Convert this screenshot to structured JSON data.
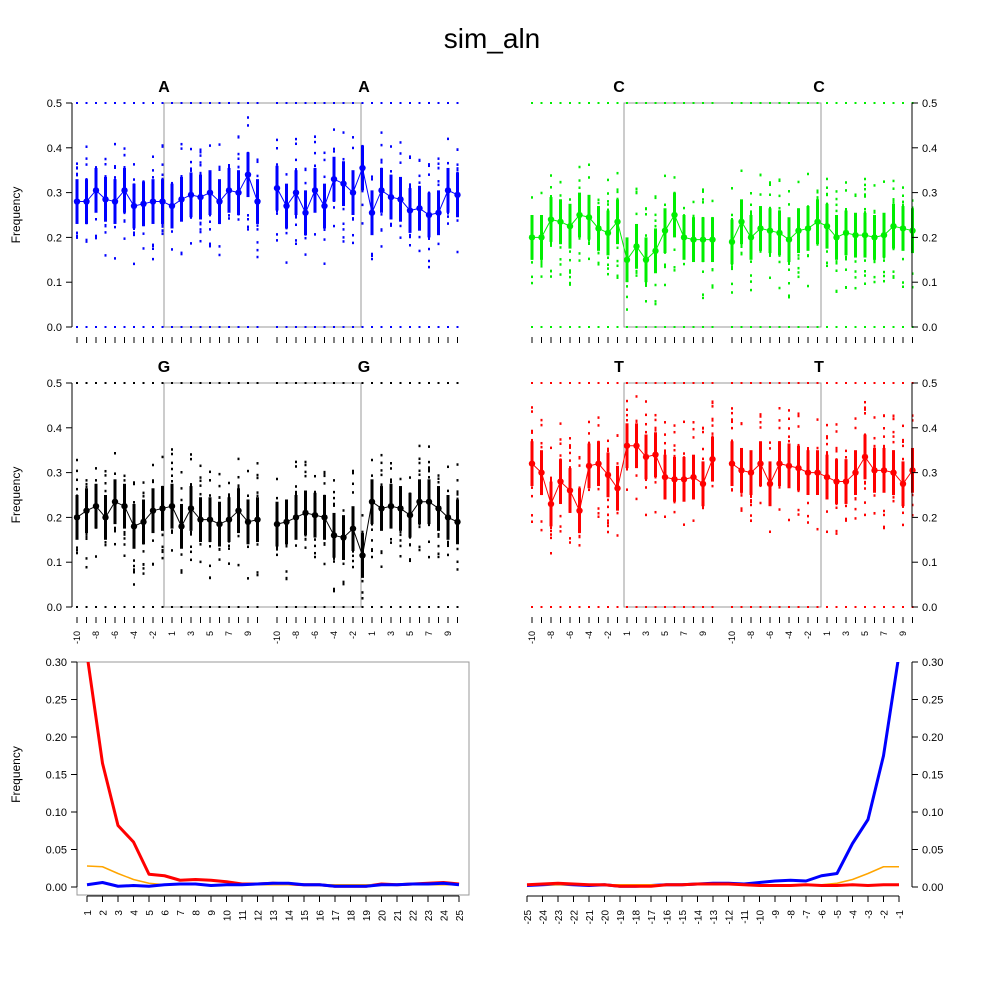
{
  "title": "sim_aln",
  "colors": {
    "A": "#0000ff",
    "C": "#00ee00",
    "G": "#000000",
    "T": "#ff0000",
    "box": "#999999",
    "orange": "#ffa500"
  },
  "labels": {
    "ylabel": "Frequency",
    "A": "A",
    "C": "C",
    "G": "G",
    "T": "T"
  },
  "chart_data": [
    {
      "type": "line",
      "title": "A",
      "panel": "A-left",
      "x": [
        -10,
        -9,
        -8,
        -7,
        -6,
        -5,
        -4,
        -3,
        -2,
        -1,
        1,
        2,
        3,
        4,
        5,
        6,
        7,
        8,
        9,
        10
      ],
      "mean": [
        0.28,
        0.28,
        0.305,
        0.285,
        0.28,
        0.305,
        0.27,
        0.275,
        0.28,
        0.28,
        0.27,
        0.285,
        0.295,
        0.29,
        0.3,
        0.28,
        0.305,
        0.3,
        0.34,
        0.28
      ],
      "ylim": [
        0,
        0.5
      ],
      "yticks": [
        0.0,
        0.1,
        0.2,
        0.3,
        0.4,
        0.5
      ],
      "ylabel": "Frequency"
    },
    {
      "type": "line",
      "title": "A",
      "panel": "A-right",
      "x": [
        -10,
        -9,
        -8,
        -7,
        -6,
        -5,
        -4,
        -3,
        -2,
        -1,
        1,
        2,
        3,
        4,
        5,
        6,
        7,
        8,
        9,
        10
      ],
      "mean": [
        0.31,
        0.27,
        0.3,
        0.255,
        0.305,
        0.27,
        0.33,
        0.32,
        0.3,
        0.355,
        0.255,
        0.305,
        0.29,
        0.285,
        0.26,
        0.265,
        0.25,
        0.255,
        0.305,
        0.295
      ],
      "ylim": [
        0,
        0.5
      ]
    },
    {
      "type": "line",
      "title": "C",
      "panel": "C-left",
      "x": [
        -10,
        -9,
        -8,
        -7,
        -6,
        -5,
        -4,
        -3,
        -2,
        -1,
        1,
        2,
        3,
        4,
        5,
        6,
        7,
        8,
        9,
        10
      ],
      "mean": [
        0.2,
        0.2,
        0.24,
        0.235,
        0.225,
        0.25,
        0.245,
        0.22,
        0.21,
        0.235,
        0.15,
        0.18,
        0.15,
        0.17,
        0.215,
        0.25,
        0.2,
        0.195,
        0.195,
        0.195
      ],
      "ylim": [
        0,
        0.5
      ]
    },
    {
      "type": "line",
      "title": "C",
      "panel": "C-right",
      "x": [
        -10,
        -9,
        -8,
        -7,
        -6,
        -5,
        -4,
        -3,
        -2,
        -1,
        1,
        2,
        3,
        4,
        5,
        6,
        7,
        8,
        9,
        10
      ],
      "mean": [
        0.19,
        0.235,
        0.2,
        0.22,
        0.215,
        0.21,
        0.195,
        0.215,
        0.22,
        0.235,
        0.225,
        0.2,
        0.21,
        0.205,
        0.205,
        0.2,
        0.205,
        0.225,
        0.22,
        0.215
      ],
      "ylim": [
        0,
        0.5
      ],
      "yticks": [
        0.0,
        0.1,
        0.2,
        0.3,
        0.4,
        0.5
      ]
    },
    {
      "type": "line",
      "title": "G",
      "panel": "G-left",
      "x": [
        -10,
        -9,
        -8,
        -7,
        -6,
        -5,
        -4,
        -3,
        -2,
        -1,
        1,
        2,
        3,
        4,
        5,
        6,
        7,
        8,
        9,
        10
      ],
      "mean": [
        0.2,
        0.215,
        0.225,
        0.2,
        0.235,
        0.225,
        0.18,
        0.19,
        0.215,
        0.22,
        0.225,
        0.18,
        0.22,
        0.195,
        0.195,
        0.185,
        0.195,
        0.215,
        0.19,
        0.195
      ],
      "ylim": [
        0,
        0.5
      ],
      "yticks": [
        0.0,
        0.1,
        0.2,
        0.3,
        0.4,
        0.5
      ],
      "ylabel": "Frequency"
    },
    {
      "type": "line",
      "title": "G",
      "panel": "G-right",
      "x": [
        -10,
        -9,
        -8,
        -7,
        -6,
        -5,
        -4,
        -3,
        -2,
        -1,
        1,
        2,
        3,
        4,
        5,
        6,
        7,
        8,
        9,
        10
      ],
      "mean": [
        0.185,
        0.19,
        0.2,
        0.21,
        0.205,
        0.2,
        0.16,
        0.155,
        0.175,
        0.115,
        0.235,
        0.22,
        0.225,
        0.22,
        0.205,
        0.235,
        0.235,
        0.22,
        0.2,
        0.19
      ],
      "ylim": [
        0,
        0.5
      ]
    },
    {
      "type": "line",
      "title": "T",
      "panel": "T-left",
      "x": [
        -10,
        -9,
        -8,
        -7,
        -6,
        -5,
        -4,
        -3,
        -2,
        -1,
        1,
        2,
        3,
        4,
        5,
        6,
        7,
        8,
        9,
        10
      ],
      "mean": [
        0.32,
        0.3,
        0.23,
        0.28,
        0.26,
        0.215,
        0.315,
        0.32,
        0.295,
        0.265,
        0.36,
        0.36,
        0.335,
        0.34,
        0.29,
        0.285,
        0.285,
        0.29,
        0.275,
        0.33
      ],
      "ylim": [
        0,
        0.5
      ]
    },
    {
      "type": "line",
      "title": "T",
      "panel": "T-right",
      "x": [
        -10,
        -9,
        -8,
        -7,
        -6,
        -5,
        -4,
        -3,
        -2,
        -1,
        1,
        2,
        3,
        4,
        5,
        6,
        7,
        8,
        9,
        10
      ],
      "mean": [
        0.32,
        0.305,
        0.3,
        0.32,
        0.275,
        0.32,
        0.315,
        0.31,
        0.3,
        0.3,
        0.29,
        0.28,
        0.28,
        0.3,
        0.335,
        0.305,
        0.305,
        0.3,
        0.275,
        0.305
      ],
      "ylim": [
        0,
        0.5
      ],
      "yticks": [
        0.0,
        0.1,
        0.2,
        0.3,
        0.4,
        0.5
      ]
    },
    {
      "type": "line",
      "panel": "bottom-left",
      "ylabel": "Frequency",
      "ylim": [
        0,
        0.3
      ],
      "yticks": [
        0.0,
        0.05,
        0.1,
        0.15,
        0.2,
        0.25,
        0.3
      ],
      "x": [
        1,
        2,
        3,
        4,
        5,
        6,
        7,
        8,
        9,
        10,
        11,
        12,
        13,
        14,
        15,
        16,
        17,
        18,
        19,
        20,
        21,
        22,
        23,
        24,
        25
      ],
      "series": [
        {
          "color": "red",
          "values": [
            0.31,
            0.165,
            0.082,
            0.06,
            0.017,
            0.015,
            0.009,
            0.01,
            0.009,
            0.007,
            0.004,
            0.004,
            0.005,
            0.004,
            0.003,
            0.003,
            0.001,
            0.001,
            0.001,
            0.004,
            0.003,
            0.004,
            0.005,
            0.006,
            0.004
          ]
        },
        {
          "color": "orange",
          "values": [
            0.028,
            0.027,
            0.018,
            0.01,
            0.005,
            0.003,
            0.003,
            0.003,
            0.003,
            0.003,
            0.003,
            0.003,
            0.003,
            0.003,
            0.003,
            0.003,
            0.003,
            0.003,
            0.003,
            0.003,
            0.003,
            0.003,
            0.003,
            0.003,
            0.003
          ]
        },
        {
          "color": "blue",
          "values": [
            0.003,
            0.006,
            0.001,
            0.002,
            0.001,
            0.003,
            0.004,
            0.004,
            0.002,
            0.003,
            0.003,
            0.004,
            0.005,
            0.005,
            0.003,
            0.003,
            0.001,
            0.001,
            0.001,
            0.003,
            0.003,
            0.004,
            0.004,
            0.005,
            0.003
          ]
        }
      ]
    },
    {
      "type": "line",
      "panel": "bottom-right",
      "ylim": [
        0,
        0.3
      ],
      "yticks": [
        0.0,
        0.05,
        0.1,
        0.15,
        0.2,
        0.25,
        0.3
      ],
      "x": [
        -25,
        -24,
        -23,
        -22,
        -21,
        -20,
        -19,
        -18,
        -17,
        -16,
        -15,
        -14,
        -13,
        -12,
        -11,
        -10,
        -9,
        -8,
        -7,
        -6,
        -5,
        -4,
        -3,
        -2,
        -1
      ],
      "series": [
        {
          "color": "blue",
          "values": [
            0.002,
            0.003,
            0.004,
            0.003,
            0.002,
            0.003,
            0.001,
            0.001,
            0.002,
            0.003,
            0.003,
            0.004,
            0.005,
            0.005,
            0.004,
            0.006,
            0.008,
            0.009,
            0.008,
            0.015,
            0.018,
            0.058,
            0.09,
            0.175,
            0.31
          ]
        },
        {
          "color": "orange",
          "values": [
            0.003,
            0.003,
            0.003,
            0.003,
            0.003,
            0.003,
            0.003,
            0.003,
            0.003,
            0.003,
            0.003,
            0.003,
            0.003,
            0.003,
            0.003,
            0.003,
            0.003,
            0.003,
            0.003,
            0.003,
            0.005,
            0.01,
            0.018,
            0.027,
            0.027
          ]
        },
        {
          "color": "red",
          "values": [
            0.003,
            0.004,
            0.005,
            0.004,
            0.003,
            0.003,
            0.001,
            0.001,
            0.001,
            0.003,
            0.003,
            0.004,
            0.004,
            0.004,
            0.003,
            0.002,
            0.002,
            0.002,
            0.003,
            0.002,
            0.002,
            0.003,
            0.002,
            0.003,
            0.003
          ]
        }
      ]
    }
  ],
  "x_axis": {
    "mid_ticks": [
      "-10",
      "-8",
      "-6",
      "-4",
      "-2",
      "1",
      "3",
      "5",
      "7",
      "9"
    ],
    "bottom_left_ticks": [
      "1",
      "2",
      "3",
      "4",
      "5",
      "6",
      "7",
      "8",
      "9",
      "10",
      "11",
      "12",
      "13",
      "14",
      "15",
      "16",
      "17",
      "18",
      "19",
      "20",
      "21",
      "22",
      "23",
      "24",
      "25"
    ],
    "bottom_right_ticks": [
      "-25",
      "-24",
      "-23",
      "-22",
      "-21",
      "-20",
      "-19",
      "-18",
      "-17",
      "-16",
      "-15",
      "-14",
      "-13",
      "-12",
      "-11",
      "-10",
      "-9",
      "-8",
      "-7",
      "-6",
      "-5",
      "-4",
      "-3",
      "-2",
      "-1"
    ]
  },
  "y_tick_labels": {
    "top": [
      "0.0",
      "0.1",
      "0.2",
      "0.3",
      "0.4",
      "0.5"
    ],
    "bottom": [
      "0.00",
      "0.05",
      "0.10",
      "0.15",
      "0.20",
      "0.25",
      "0.30"
    ]
  }
}
